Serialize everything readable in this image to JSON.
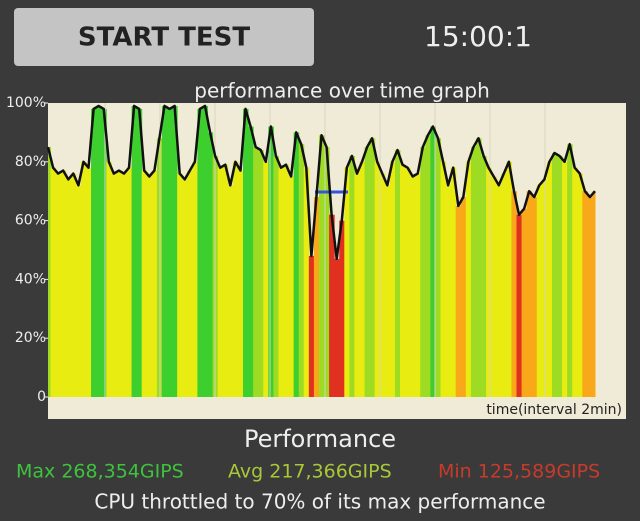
{
  "ui": {
    "start_button": "START TEST",
    "timer": "15:00:1",
    "section_title": "Performance",
    "max": "Max 268,354GIPS",
    "avg": "Avg 217,366GIPS",
    "min": "Min 125,589GIPS",
    "summary": "CPU throttled to 70% of its max performance"
  },
  "chart_data": {
    "type": "line",
    "title": "performance over time graph",
    "xlabel": "time(interval 2min)",
    "ylim": [
      0,
      100
    ],
    "yticks": [
      0,
      {
        "value": 20,
        "label": "20%"
      },
      {
        "value": 40,
        "label": "40%"
      },
      {
        "value": 60,
        "label": "60%"
      },
      {
        "value": 80,
        "label": "80%"
      },
      {
        "value": 100,
        "label": "100%"
      }
    ],
    "color": "#111111",
    "values": [
      85,
      78,
      76,
      77,
      74,
      76,
      72,
      80,
      78,
      98,
      99,
      98,
      80,
      76,
      77,
      76,
      78,
      99,
      98,
      77,
      75,
      77,
      88,
      99,
      98,
      99,
      76,
      74,
      77,
      80,
      98,
      99,
      90,
      82,
      78,
      79,
      72,
      80,
      77,
      98,
      92,
      85,
      84,
      80,
      92,
      82,
      78,
      79,
      75,
      90,
      86,
      78,
      48,
      68,
      89,
      85,
      62,
      47,
      60,
      78,
      82,
      76,
      80,
      85,
      88,
      80,
      76,
      72,
      80,
      84,
      79,
      78,
      75,
      76,
      85,
      89,
      92,
      88,
      80,
      72,
      78,
      65,
      68,
      80,
      85,
      88,
      82,
      78,
      75,
      72,
      76,
      80,
      70,
      62,
      64,
      70,
      68,
      72,
      74,
      80,
      83,
      82,
      80,
      86,
      78,
      76,
      70,
      68,
      70
    ]
  }
}
